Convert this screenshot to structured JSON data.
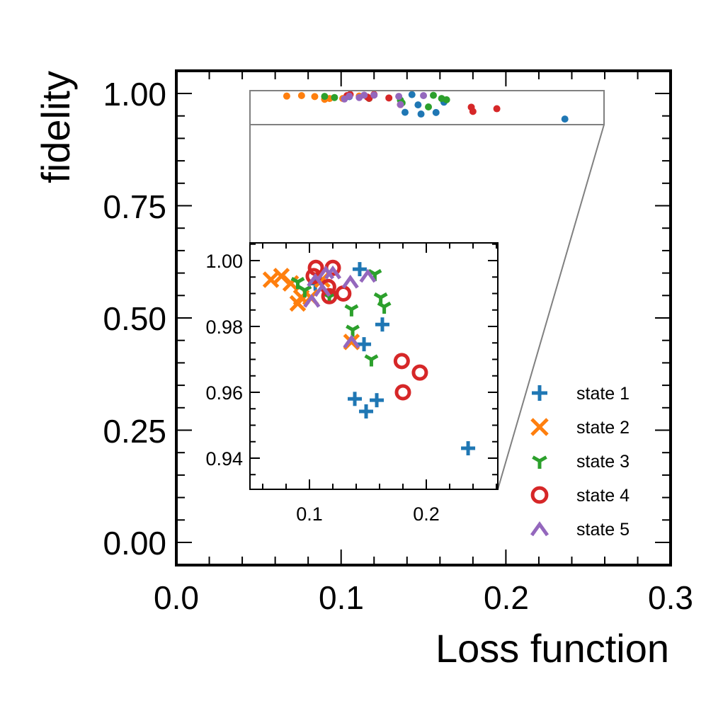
{
  "chart_data": {
    "type": "scatter",
    "xlabel": "Loss function",
    "ylabel": "fidelity",
    "xlim": [
      0.0,
      0.3
    ],
    "ylim": [
      -0.05,
      1.05
    ],
    "xticks": [
      "0.0",
      "0.1",
      "0.2",
      "0.3"
    ],
    "yticks": [
      "0.00",
      "0.25",
      "0.50",
      "0.75",
      "1.00"
    ],
    "inset": {
      "xlim": [
        0.049,
        0.261
      ],
      "ylim": [
        0.9305,
        1.0054
      ],
      "xticks": [
        "0.1",
        "0.2"
      ],
      "yticks": [
        "0.94",
        "0.96",
        "0.98",
        "1.00"
      ]
    },
    "legend_position": "lower-right",
    "series": [
      {
        "name": "state 1",
        "color": "#1f77b4",
        "marker": "plus",
        "points": [
          [
            0.143,
            0.9974
          ],
          [
            0.1624,
            0.9806
          ],
          [
            0.1467,
            0.9746
          ],
          [
            0.1388,
            0.958
          ],
          [
            0.1576,
            0.9576
          ],
          [
            0.1485,
            0.9542
          ],
          [
            0.2358,
            0.943
          ],
          [
            0.105,
            0.993
          ]
        ]
      },
      {
        "name": "state 2",
        "color": "#ff7f0e",
        "marker": "x",
        "points": [
          [
            0.067,
            0.9942
          ],
          [
            0.076,
            0.9953
          ],
          [
            0.084,
            0.9931
          ],
          [
            0.093,
            0.9888
          ],
          [
            0.09,
            0.987
          ],
          [
            0.101,
            0.9888
          ],
          [
            0.136,
            0.9753
          ],
          [
            0.111,
            0.9942
          ]
        ]
      },
      {
        "name": "state 3",
        "color": "#2ca02c",
        "marker": "tri_down",
        "points": [
          [
            0.09,
            0.9935
          ],
          [
            0.096,
            0.991
          ],
          [
            0.156,
            0.9959
          ],
          [
            0.161,
            0.9888
          ],
          [
            0.164,
            0.986
          ],
          [
            0.136,
            0.9852
          ],
          [
            0.137,
            0.979
          ],
          [
            0.153,
            0.97
          ],
          [
            0.117,
            0.989
          ]
        ]
      },
      {
        "name": "state 4",
        "color": "#d62728",
        "marker": "circle",
        "points": [
          [
            0.1055,
            0.9978
          ],
          [
            0.12,
            0.9978
          ],
          [
            0.1036,
            0.9953
          ],
          [
            0.116,
            0.992
          ],
          [
            0.129,
            0.99
          ],
          [
            0.117,
            0.9892
          ],
          [
            0.179,
            0.9695
          ],
          [
            0.1945,
            0.966
          ],
          [
            0.18,
            0.96
          ]
        ]
      },
      {
        "name": "state 5",
        "color": "#9467bd",
        "marker": "caret_up",
        "points": [
          [
            0.102,
            0.9877
          ],
          [
            0.111,
            0.991
          ],
          [
            0.114,
            0.9963
          ],
          [
            0.12,
            0.9963
          ],
          [
            0.135,
            0.9935
          ],
          [
            0.15,
            0.9953
          ],
          [
            0.136,
            0.9753
          ],
          [
            0.105,
            0.994
          ]
        ]
      }
    ]
  }
}
